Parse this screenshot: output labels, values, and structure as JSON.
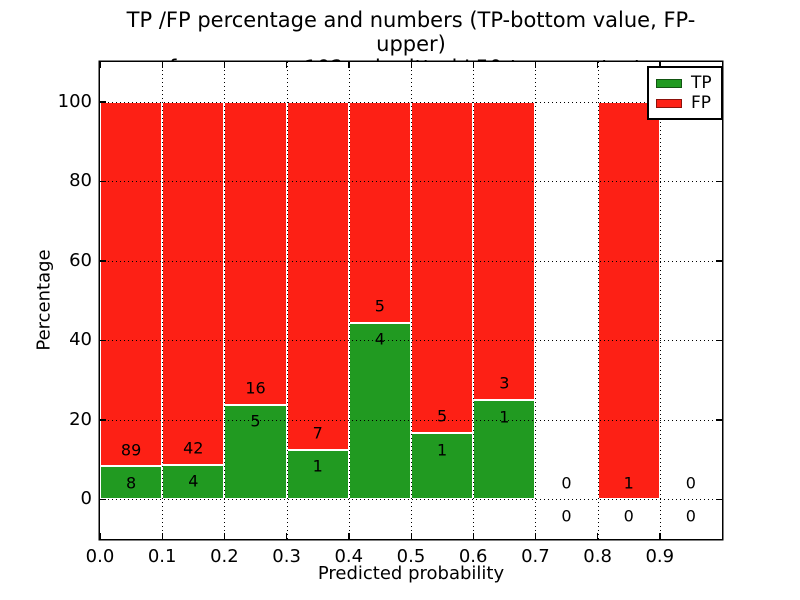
{
  "figure": {
    "title_line1": "TP /FP percentage and numbers (TP-bottom value, FP-upper)",
    "title_line2": "from among 192 submitted L50-type contacts",
    "xlabel": "Predicted probability",
    "ylabel": "Percentage"
  },
  "legend": {
    "position": "upper right",
    "items": [
      {
        "label": "TP",
        "color": "#219a21"
      },
      {
        "label": "FP",
        "color": "#fd2015"
      }
    ]
  },
  "chart_data": {
    "type": "bar",
    "subtype": "stacked-100-percent",
    "title": "TP /FP percentage and numbers (TP-bottom value, FP-upper) from among 192 submitted L50-type contacts",
    "xlabel": "Predicted probability",
    "ylabel": "Percentage",
    "total_contacts_in_title": 192,
    "xlim": [
      0.0,
      1.0
    ],
    "ylim": [
      -10,
      110
    ],
    "x_ticks": [
      "0.0",
      "0.1",
      "0.2",
      "0.3",
      "0.4",
      "0.5",
      "0.6",
      "0.7",
      "0.8",
      "0.9"
    ],
    "y_ticks": [
      0,
      20,
      40,
      60,
      80,
      100
    ],
    "grid": "dotted-black-both-axes",
    "legend_position": "upper right",
    "series": [
      {
        "name": "TP",
        "color": "#219a21",
        "stack_position": "bottom"
      },
      {
        "name": "FP",
        "color": "#fd2015",
        "stack_position": "top"
      }
    ],
    "bins": [
      {
        "range": [
          0.0,
          0.1
        ],
        "tp": 8,
        "fp": 89,
        "tp_pct": 8.2,
        "fp_pct": 91.8
      },
      {
        "range": [
          0.1,
          0.2
        ],
        "tp": 4,
        "fp": 42,
        "tp_pct": 8.7,
        "fp_pct": 91.3
      },
      {
        "range": [
          0.2,
          0.3
        ],
        "tp": 5,
        "fp": 16,
        "tp_pct": 23.8,
        "fp_pct": 76.2
      },
      {
        "range": [
          0.3,
          0.4
        ],
        "tp": 1,
        "fp": 7,
        "tp_pct": 12.5,
        "fp_pct": 87.5
      },
      {
        "range": [
          0.4,
          0.5
        ],
        "tp": 4,
        "fp": 5,
        "tp_pct": 44.4,
        "fp_pct": 55.6
      },
      {
        "range": [
          0.5,
          0.6
        ],
        "tp": 1,
        "fp": 5,
        "tp_pct": 16.7,
        "fp_pct": 83.3
      },
      {
        "range": [
          0.6,
          0.7
        ],
        "tp": 1,
        "fp": 3,
        "tp_pct": 25.0,
        "fp_pct": 75.0
      },
      {
        "range": [
          0.7,
          0.8
        ],
        "tp": 0,
        "fp": 0,
        "tp_pct": 0,
        "fp_pct": 0
      },
      {
        "range": [
          0.8,
          0.9
        ],
        "tp": 0,
        "fp": 1,
        "tp_pct": 0,
        "fp_pct": 100
      },
      {
        "range": [
          0.9,
          1.0
        ],
        "tp": 0,
        "fp": 0,
        "tp_pct": 0,
        "fp_pct": 0
      }
    ],
    "colors": {
      "tp": "#219a21",
      "fp": "#fd2015",
      "grid": "#000000",
      "bar_edge": "#ffffff",
      "background": "#ffffff"
    }
  }
}
